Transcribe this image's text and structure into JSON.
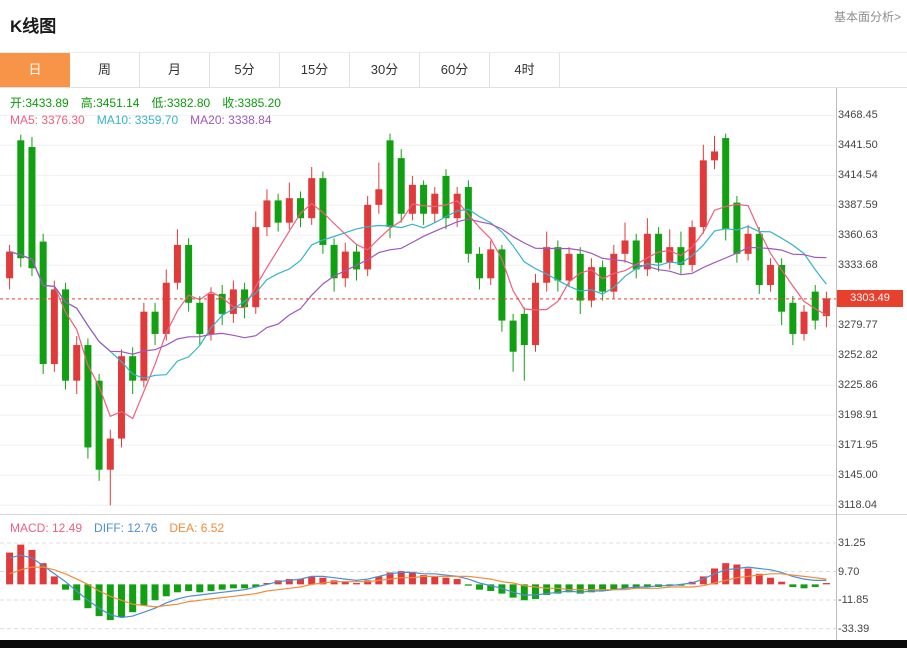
{
  "header": {
    "title": "K线图",
    "more_link": "基本面分析>"
  },
  "tabs": [
    "日",
    "周",
    "月",
    "5分",
    "15分",
    "30分",
    "60分",
    "4时"
  ],
  "active_tab": 0,
  "ohlc": [
    {
      "name": "open",
      "label": "开:",
      "value": "3433.89",
      "color": "#0a9a0a"
    },
    {
      "name": "high",
      "label": "高:",
      "value": "3451.14",
      "color": "#0a9a0a"
    },
    {
      "name": "low",
      "label": "低:",
      "value": "3382.80",
      "color": "#0a9a0a"
    },
    {
      "name": "close",
      "label": "收:",
      "value": "3385.20",
      "color": "#0a9a0a"
    }
  ],
  "ma_legend": [
    {
      "name": "ma5",
      "label": "MA5: ",
      "value": "3376.30",
      "color": "#ef5f7e"
    },
    {
      "name": "ma10",
      "label": "MA10: ",
      "value": "3359.70",
      "color": "#36b3c8"
    },
    {
      "name": "ma20",
      "label": "MA20: ",
      "value": "3338.84",
      "color": "#9e58ba"
    }
  ],
  "macd_legend": [
    {
      "name": "macd",
      "label": "MACD: ",
      "value": "12.49",
      "color": "#ef5f7e"
    },
    {
      "name": "diff",
      "label": "DIFF: ",
      "value": "12.76",
      "color": "#4a8fd3"
    },
    {
      "name": "dea",
      "label": "DEA: ",
      "value": "6.52",
      "color": "#f08c3c"
    }
  ],
  "colors": {
    "up": "#e03b3a",
    "down": "#11a011",
    "badge": "#e8402d",
    "grid": "#f0f0f0",
    "macd_grid": "#dcdcdc",
    "axis_text": "#444444",
    "diff": "#4a8fd3",
    "dea": "#f08c3c",
    "ma5": "#ef5f7e",
    "ma10": "#36b3c8",
    "ma20": "#9e58ba",
    "active_tab": "#f79447",
    "ohlc_text": "#0a9a0a"
  },
  "chart_data": {
    "type": "candlestick+macd",
    "main": {
      "type": "candlestick",
      "ymin": 3112,
      "ymax": 3493,
      "y_axis_labels": [
        "3468.45",
        "3441.50",
        "3414.54",
        "3387.59",
        "3360.63",
        "3333.68",
        "3279.77",
        "3252.82",
        "3225.86",
        "3198.91",
        "3171.95",
        "3145.00",
        "3118.04"
      ],
      "current_price": 3303.49,
      "current_price_label": "3303.49",
      "ma_windows": [
        5,
        10,
        20
      ],
      "candles": [
        [
          3322,
          3346,
          3312,
          3352
        ],
        [
          3446,
          3340,
          3332,
          3451
        ],
        [
          3440,
          3331,
          3324,
          3449
        ],
        [
          3355,
          3245,
          3236,
          3362
        ],
        [
          3245,
          3312,
          3238,
          3320
        ],
        [
          3312,
          3230,
          3222,
          3318
        ],
        [
          3230,
          3262,
          3218,
          3270
        ],
        [
          3262,
          3170,
          3160,
          3268
        ],
        [
          3230,
          3150,
          3140,
          3236
        ],
        [
          3150,
          3178,
          3118,
          3186
        ],
        [
          3178,
          3252,
          3170,
          3258
        ],
        [
          3252,
          3230,
          3218,
          3260
        ],
        [
          3230,
          3292,
          3224,
          3300
        ],
        [
          3292,
          3272,
          3262,
          3300
        ],
        [
          3272,
          3318,
          3266,
          3330
        ],
        [
          3318,
          3352,
          3312,
          3366
        ],
        [
          3352,
          3300,
          3292,
          3358
        ],
        [
          3300,
          3272,
          3262,
          3306
        ],
        [
          3272,
          3308,
          3266,
          3314
        ],
        [
          3308,
          3290,
          3280,
          3316
        ],
        [
          3290,
          3312,
          3282,
          3320
        ],
        [
          3312,
          3296,
          3286,
          3318
        ],
        [
          3296,
          3368,
          3290,
          3382
        ],
        [
          3368,
          3392,
          3360,
          3402
        ],
        [
          3392,
          3372,
          3364,
          3398
        ],
        [
          3372,
          3394,
          3366,
          3408
        ],
        [
          3394,
          3376,
          3368,
          3400
        ],
        [
          3376,
          3412,
          3370,
          3422
        ],
        [
          3412,
          3352,
          3344,
          3418
        ],
        [
          3352,
          3322,
          3310,
          3358
        ],
        [
          3322,
          3346,
          3314,
          3354
        ],
        [
          3346,
          3330,
          3320,
          3352
        ],
        [
          3330,
          3388,
          3324,
          3396
        ],
        [
          3388,
          3402,
          3380,
          3426
        ],
        [
          3446,
          3368,
          3358,
          3452
        ],
        [
          3430,
          3380,
          3372,
          3438
        ],
        [
          3380,
          3406,
          3374,
          3414
        ],
        [
          3406,
          3380,
          3370,
          3410
        ],
        [
          3380,
          3398,
          3372,
          3404
        ],
        [
          3414,
          3376,
          3366,
          3420
        ],
        [
          3376,
          3398,
          3368,
          3404
        ],
        [
          3404,
          3344,
          3336,
          3410
        ],
        [
          3344,
          3322,
          3312,
          3350
        ],
        [
          3322,
          3348,
          3316,
          3356
        ],
        [
          3348,
          3284,
          3274,
          3352
        ],
        [
          3284,
          3256,
          3238,
          3290
        ],
        [
          3290,
          3262,
          3230,
          3296
        ],
        [
          3262,
          3318,
          3256,
          3326
        ],
        [
          3318,
          3350,
          3310,
          3364
        ],
        [
          3350,
          3320,
          3310,
          3356
        ],
        [
          3320,
          3344,
          3314,
          3350
        ],
        [
          3344,
          3302,
          3290,
          3350
        ],
        [
          3302,
          3332,
          3296,
          3340
        ],
        [
          3332,
          3310,
          3302,
          3338
        ],
        [
          3310,
          3344,
          3304,
          3352
        ],
        [
          3344,
          3356,
          3336,
          3372
        ],
        [
          3356,
          3330,
          3322,
          3362
        ],
        [
          3330,
          3362,
          3324,
          3376
        ],
        [
          3362,
          3336,
          3328,
          3368
        ],
        [
          3336,
          3350,
          3330,
          3366
        ],
        [
          3350,
          3334,
          3326,
          3364
        ],
        [
          3334,
          3368,
          3328,
          3374
        ],
        [
          3368,
          3428,
          3362,
          3442
        ],
        [
          3428,
          3436,
          3420,
          3450
        ],
        [
          3448,
          3366,
          3356,
          3452
        ],
        [
          3390,
          3344,
          3336,
          3396
        ],
        [
          3344,
          3362,
          3338,
          3370
        ],
        [
          3362,
          3316,
          3308,
          3368
        ],
        [
          3316,
          3334,
          3310,
          3340
        ],
        [
          3334,
          3292,
          3280,
          3340
        ],
        [
          3300,
          3272,
          3262,
          3306
        ],
        [
          3272,
          3292,
          3266,
          3298
        ],
        [
          3310,
          3284,
          3276,
          3316
        ],
        [
          3288,
          3304,
          3278,
          3310
        ]
      ]
    },
    "macd": {
      "type": "bar+line",
      "ymin": -40.5,
      "ymax": 50.1,
      "y_axis_labels": [
        "31.25",
        "9.70",
        "-11.85",
        "-33.39"
      ],
      "hist": [
        24,
        30,
        26,
        16,
        6,
        -4,
        -12,
        -18,
        -24,
        -27,
        -25,
        -21,
        -16,
        -12,
        -9,
        -6,
        -5,
        -6,
        -5,
        -4,
        -3,
        -3,
        -2,
        1,
        3,
        4,
        4,
        6,
        5,
        3,
        2,
        1,
        3,
        6,
        9,
        10,
        9,
        7,
        6,
        5,
        4,
        -1,
        -4,
        -5,
        -7,
        -10,
        -12,
        -11,
        -8,
        -7,
        -6,
        -7,
        -6,
        -5,
        -4,
        -3,
        -3,
        -2,
        -2,
        -1,
        -1,
        2,
        6,
        12,
        16,
        15,
        12,
        8,
        5,
        2,
        -2,
        -3,
        -2,
        1
      ],
      "diff": [
        20,
        22,
        20,
        14,
        8,
        2,
        -5,
        -12,
        -18,
        -23,
        -25,
        -24,
        -21,
        -18,
        -14,
        -11,
        -9,
        -8,
        -7,
        -6,
        -5,
        -4,
        -2,
        0,
        2,
        3,
        4,
        6,
        6,
        5,
        4,
        3,
        4,
        6,
        8,
        9,
        9,
        8,
        8,
        7,
        6,
        4,
        1,
        -1,
        -3,
        -6,
        -8,
        -8,
        -7,
        -6,
        -5,
        -6,
        -5,
        -5,
        -4,
        -3,
        -2,
        -2,
        -1,
        -1,
        0,
        1,
        4,
        8,
        11,
        12,
        13,
        12,
        11,
        9,
        6,
        4,
        3,
        3
      ],
      "dea": [
        8,
        11,
        13,
        13,
        11,
        8,
        4,
        0,
        -5,
        -9,
        -12,
        -15,
        -16,
        -17,
        -16,
        -15,
        -13,
        -12,
        -11,
        -10,
        -9,
        -8,
        -7,
        -5,
        -4,
        -3,
        -2,
        0,
        1,
        2,
        2,
        2,
        2,
        3,
        4,
        5,
        5,
        6,
        6,
        6,
        6,
        6,
        5,
        4,
        2,
        1,
        -1,
        -2,
        -3,
        -3,
        -4,
        -4,
        -4,
        -4,
        -4,
        -4,
        -3,
        -3,
        -3,
        -2,
        -2,
        -2,
        -1,
        1,
        3,
        5,
        6,
        7,
        8,
        8,
        7,
        6,
        5,
        4
      ]
    }
  }
}
